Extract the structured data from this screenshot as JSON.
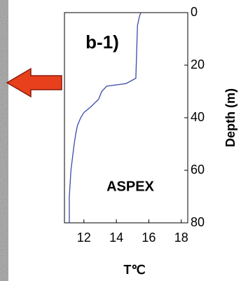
{
  "chart_data": {
    "type": "line",
    "title": "b-1)",
    "annotation": "ASPEX",
    "x_label": "T℃",
    "y_label": "Depth (m)",
    "x": [
      15.5,
      15.4,
      15.3,
      15.25,
      15.2,
      14.6,
      13.4,
      13.1,
      12.9,
      12.4,
      12.0,
      11.8,
      11.6,
      11.5,
      11.4,
      11.3,
      11.2,
      11.1,
      11.1
    ],
    "values": [
      0,
      2,
      5,
      15,
      25,
      27,
      28,
      30,
      33,
      36,
      38,
      40,
      43,
      46,
      50,
      55,
      60,
      70,
      80
    ],
    "color": "#3c4aa8",
    "xlim": [
      10.8,
      18.4
    ],
    "xticks": [
      12,
      14,
      16,
      18
    ],
    "ylim": [
      0,
      80
    ],
    "yticks": [
      0,
      20,
      40,
      60,
      80
    ],
    "y_reversed": true
  }
}
